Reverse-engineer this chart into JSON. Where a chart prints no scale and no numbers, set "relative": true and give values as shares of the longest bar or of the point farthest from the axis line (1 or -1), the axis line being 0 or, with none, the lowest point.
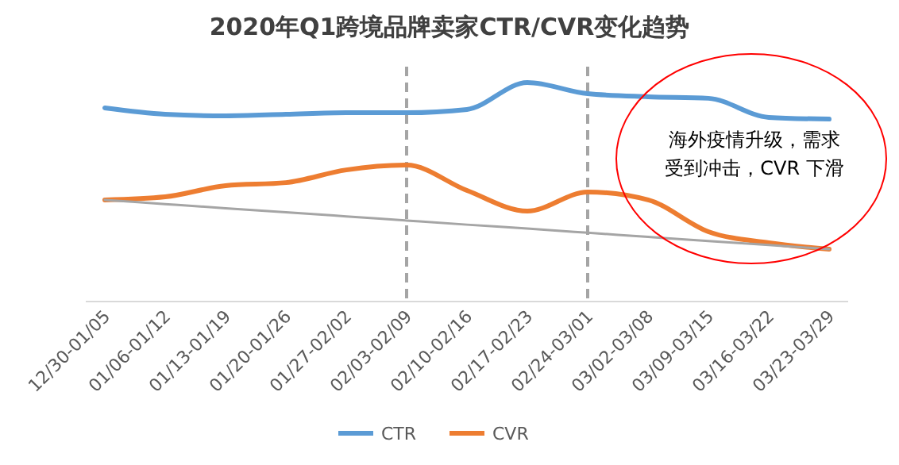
{
  "chart_data": {
    "type": "line",
    "title": "2020年Q1跨境品牌卖家CTR/CVR变化趋势",
    "relative": true,
    "legend": "bottom",
    "marker": "none",
    "line_style": "solid",
    "grid": false,
    "categories": [
      "12/30-01/05",
      "01/06-01/12",
      "01/13-01/19",
      "01/20-01/26",
      "01/27-02/02",
      "02/03-02/09",
      "02/10-02/16",
      "02/17-02/23",
      "02/24-03/01",
      "03/02-03/08",
      "03/09-03/15",
      "03/16-03/22",
      "03/23-03/29"
    ],
    "series": [
      {
        "name": "CTR",
        "color": "#5b9bd5",
        "values": [
          0.884,
          0.855,
          0.848,
          0.855,
          0.862,
          0.862,
          0.877,
          1,
          0.949,
          0.935,
          0.928,
          0.841,
          0.833
        ]
      },
      {
        "name": "CVR",
        "color": "#ed7d31",
        "values": [
          0.464,
          0.478,
          0.529,
          0.543,
          0.601,
          0.623,
          0.507,
          0.413,
          0.5,
          0.464,
          0.319,
          0.268,
          0.239
        ]
      },
      {
        "color": "#a5a5a5",
        "values": [
          0.464,
          0.445,
          0.426,
          0.408,
          0.389,
          0.37,
          0.351,
          0.333,
          0.314,
          0.295,
          0.276,
          0.258,
          0.239
        ]
      }
    ],
    "ref_lines": [
      {
        "axis": "x",
        "value": "02/03-02/09",
        "color": "#a5a5a5",
        "line_style": "dashed"
      },
      {
        "axis": "x",
        "value": "02/24-03/01",
        "color": "#a5a5a5",
        "line_style": "dashed"
      }
    ],
    "annotations": [
      "海外疫情升级，需求受到冲击，CVR 下滑"
    ]
  }
}
